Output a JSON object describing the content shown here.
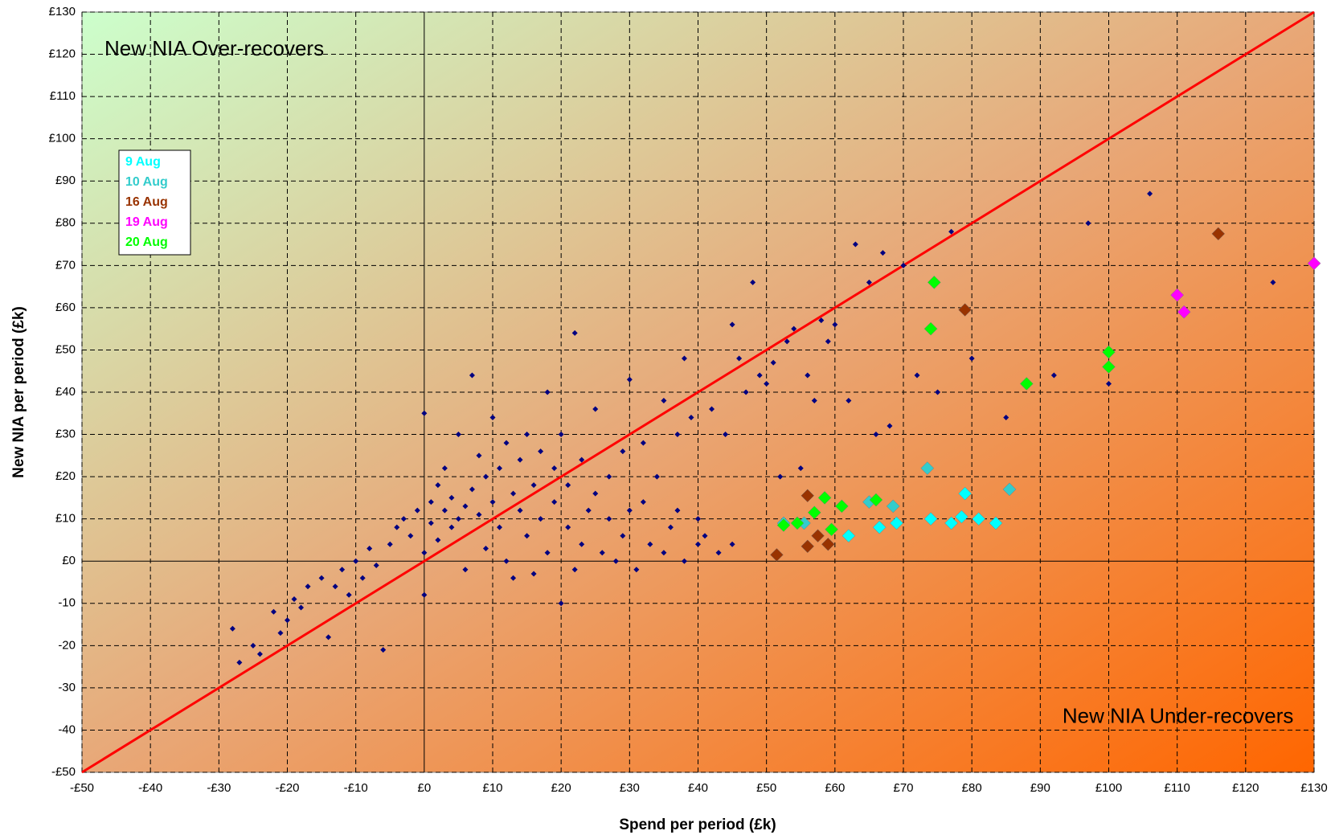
{
  "chart_data": {
    "type": "scatter",
    "x_label": "Spend per period (£k)",
    "y_label": "New NIA per period (£k)",
    "annotations": [
      "New NIA Over-recovers",
      "New NIA Under-recovers"
    ],
    "xlim": [
      -50,
      130
    ],
    "ylim": [
      -50,
      130
    ],
    "xticks": [
      {
        "value": -50,
        "label": "-£50"
      },
      {
        "value": -40,
        "label": "-£40"
      },
      {
        "value": -30,
        "label": "-£30"
      },
      {
        "value": -20,
        "label": "-£20"
      },
      {
        "value": -10,
        "label": "-£10"
      },
      {
        "value": 0,
        "label": "£0"
      },
      {
        "value": 10,
        "label": "£10"
      },
      {
        "value": 20,
        "label": "£20"
      },
      {
        "value": 30,
        "label": "£30"
      },
      {
        "value": 40,
        "label": "£40"
      },
      {
        "value": 50,
        "label": "£50"
      },
      {
        "value": 60,
        "label": "£60"
      },
      {
        "value": 70,
        "label": "£70"
      },
      {
        "value": 80,
        "label": "£80"
      },
      {
        "value": 90,
        "label": "£90"
      },
      {
        "value": 100,
        "label": "£100"
      },
      {
        "value": 110,
        "label": "£110"
      },
      {
        "value": 120,
        "label": "£120"
      },
      {
        "value": 130,
        "label": "£130"
      }
    ],
    "yticks": [
      {
        "value": -50,
        "label": "-£50"
      },
      -40,
      -30,
      -20,
      -10,
      {
        "value": 0,
        "label": "£0"
      },
      {
        "value": 10,
        "label": "£10"
      },
      {
        "value": 20,
        "label": "£20"
      },
      {
        "value": 30,
        "label": "£30"
      },
      {
        "value": 40,
        "label": "£40"
      },
      {
        "value": 50,
        "label": "£50"
      },
      {
        "value": 60,
        "label": "£60"
      },
      {
        "value": 70,
        "label": "£70"
      },
      {
        "value": 80,
        "label": "£80"
      },
      {
        "value": 90,
        "label": "£90"
      },
      {
        "value": 100,
        "label": "£100"
      },
      {
        "value": 110,
        "label": "£110"
      },
      {
        "value": 120,
        "label": "£120"
      },
      {
        "value": 130,
        "label": "£130"
      }
    ],
    "grid": true,
    "legend": "upper left",
    "marker": "diamond",
    "series": [
      {
        "color": "#000080",
        "x": [
          -28,
          -27,
          -25,
          -24,
          -22,
          -21,
          -20,
          -19,
          -18,
          -17,
          -15,
          -14,
          -13,
          -12,
          -11,
          -10,
          -9,
          -8,
          -7,
          -6,
          -5,
          -4,
          -3,
          -2,
          -1,
          0,
          0,
          0,
          1,
          1,
          2,
          2,
          3,
          3,
          4,
          4,
          5,
          5,
          6,
          6,
          7,
          7,
          8,
          8,
          9,
          9,
          10,
          10,
          11,
          11,
          12,
          12,
          13,
          13,
          14,
          14,
          15,
          15,
          16,
          16,
          17,
          17,
          18,
          18,
          19,
          19,
          20,
          20,
          21,
          21,
          22,
          22,
          23,
          23,
          24,
          25,
          25,
          26,
          27,
          27,
          28,
          29,
          29,
          30,
          30,
          31,
          32,
          32,
          33,
          34,
          35,
          35,
          36,
          37,
          37,
          38,
          38,
          39,
          40,
          40,
          41,
          42,
          43,
          44,
          45,
          45,
          46,
          47,
          48,
          49,
          50,
          51,
          52,
          53,
          54,
          55,
          56,
          57,
          58,
          59,
          60,
          62,
          63,
          65,
          66,
          67,
          68,
          70,
          72,
          75,
          77,
          80,
          85,
          92,
          97,
          100,
          106,
          124
        ],
        "values": [
          -16,
          -24,
          -20,
          -22,
          -12,
          -17,
          -14,
          -9,
          -11,
          -6,
          -4,
          -18,
          -6,
          -2,
          -8,
          0,
          -4,
          3,
          -1,
          -21,
          4,
          8,
          10,
          6,
          12,
          35,
          -8,
          2,
          9,
          14,
          18,
          5,
          12,
          22,
          8,
          15,
          10,
          30,
          13,
          -2,
          17,
          44,
          11,
          25,
          20,
          3,
          14,
          34,
          8,
          22,
          28,
          0,
          16,
          -4,
          12,
          24,
          30,
          6,
          18,
          -3,
          26,
          10,
          40,
          2,
          14,
          22,
          30,
          -10,
          8,
          18,
          54,
          -2,
          24,
          4,
          12,
          16,
          36,
          2,
          10,
          20,
          0,
          6,
          26,
          12,
          43,
          -2,
          14,
          28,
          4,
          20,
          38,
          2,
          8,
          30,
          12,
          48,
          0,
          34,
          4,
          10,
          6,
          36,
          2,
          30,
          4,
          56,
          48,
          40,
          66,
          44,
          42,
          47,
          20,
          52,
          55,
          22,
          44,
          38,
          57,
          52,
          56,
          38,
          75,
          66,
          30,
          73,
          32,
          70,
          44,
          40,
          78,
          48,
          34,
          44,
          80,
          42,
          87,
          66
        ]
      },
      {
        "name": "9 Aug",
        "color": "#00ffff",
        "x": [
          62,
          66.5,
          69,
          74,
          77,
          78.5,
          81,
          83.5,
          79
        ],
        "values": [
          6,
          8,
          9,
          10,
          9,
          10.5,
          10,
          9,
          16
        ]
      },
      {
        "name": "10 Aug",
        "color": "#33cccc",
        "x": [
          52.5,
          55.5,
          65,
          68.5,
          73.5,
          85.5
        ],
        "values": [
          9,
          9,
          14,
          13,
          22,
          17
        ]
      },
      {
        "name": "16 Aug",
        "color": "#993300",
        "x": [
          51.5,
          56,
          56,
          57.5,
          59,
          79,
          116
        ],
        "values": [
          1.5,
          15.5,
          3.5,
          6,
          4,
          59.5,
          77.5
        ]
      },
      {
        "name": "19 Aug",
        "color": "#ff00ff",
        "x": [
          110,
          111,
          130
        ],
        "values": [
          63,
          59,
          70.5
        ]
      },
      {
        "name": "20 Aug",
        "color": "#00ff00",
        "x": [
          52.5,
          54.5,
          57,
          58.5,
          59.5,
          61,
          66,
          74,
          74.5,
          88,
          100,
          100
        ],
        "values": [
          8.5,
          9,
          11.5,
          15,
          7.5,
          13,
          14.5,
          55,
          66,
          42,
          49.5,
          46
        ]
      }
    ]
  }
}
